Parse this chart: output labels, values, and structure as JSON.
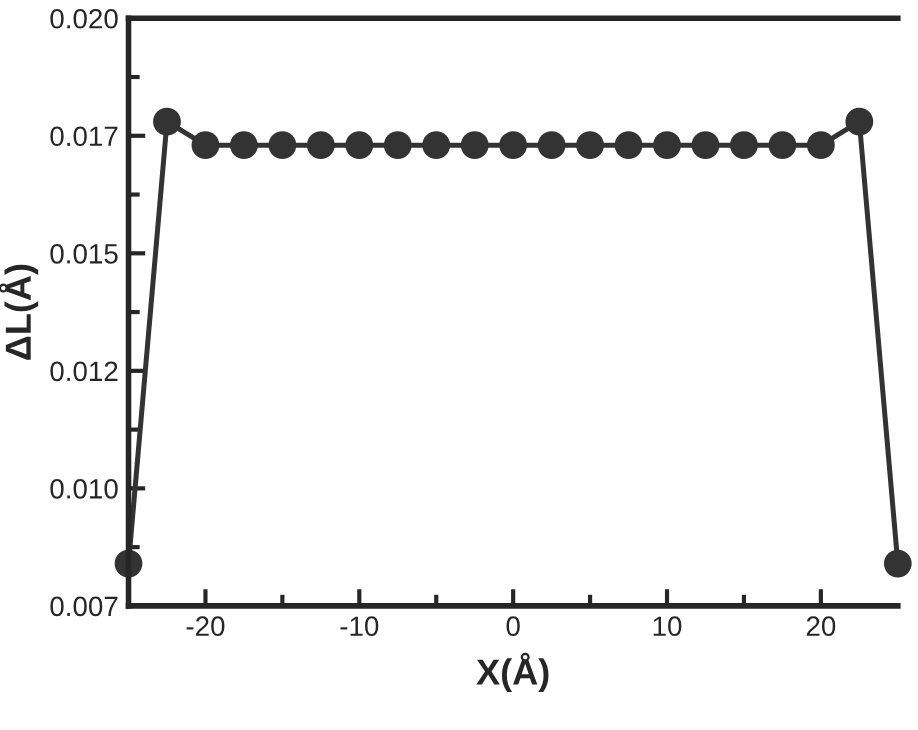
{
  "chart_data": {
    "type": "line",
    "xlabel": "X(Å)",
    "ylabel": "ΔL(Å)",
    "x": [
      -25,
      -22.5,
      -20,
      -17.5,
      -15,
      -12.5,
      -10,
      -7.5,
      -5,
      -2.5,
      0,
      2.5,
      5,
      7.5,
      10,
      12.5,
      15,
      17.5,
      20,
      22.5,
      25
    ],
    "series": [
      {
        "color": "#333333",
        "values": [
          0.0084,
          0.0178,
          0.0173,
          0.0173,
          0.0173,
          0.0173,
          0.0173,
          0.0173,
          0.0173,
          0.0173,
          0.0173,
          0.0173,
          0.0173,
          0.0173,
          0.0173,
          0.0173,
          0.0173,
          0.0173,
          0.0173,
          0.0178,
          0.0084
        ]
      }
    ],
    "xlim": [
      -25,
      25
    ],
    "ylim": [
      0.0075,
      0.02
    ],
    "xticks": [
      -20,
      {
        "value": -15,
        "label": null
      },
      -10,
      {
        "value": -5,
        "label": null
      },
      0,
      {
        "value": 5,
        "label": null
      },
      10,
      {
        "value": 15,
        "label": null
      },
      20
    ],
    "yticks": [
      {
        "value": 0.0075,
        "label": "0.007"
      },
      {
        "value": 0.00875,
        "label": null
      },
      {
        "value": 0.01,
        "label": "0.010"
      },
      {
        "value": 0.01125,
        "label": null
      },
      {
        "value": 0.0125,
        "label": "0.012"
      },
      {
        "value": 0.01375,
        "label": null
      },
      {
        "value": 0.015,
        "label": "0.015"
      },
      {
        "value": 0.01625,
        "label": null
      },
      {
        "value": 0.0175,
        "label": "0.017"
      },
      {
        "value": 0.01875,
        "label": null
      },
      {
        "value": 0.02,
        "label": "0.020"
      }
    ],
    "marker": "circle",
    "line_style": "solid",
    "grid": false,
    "legend": false
  }
}
